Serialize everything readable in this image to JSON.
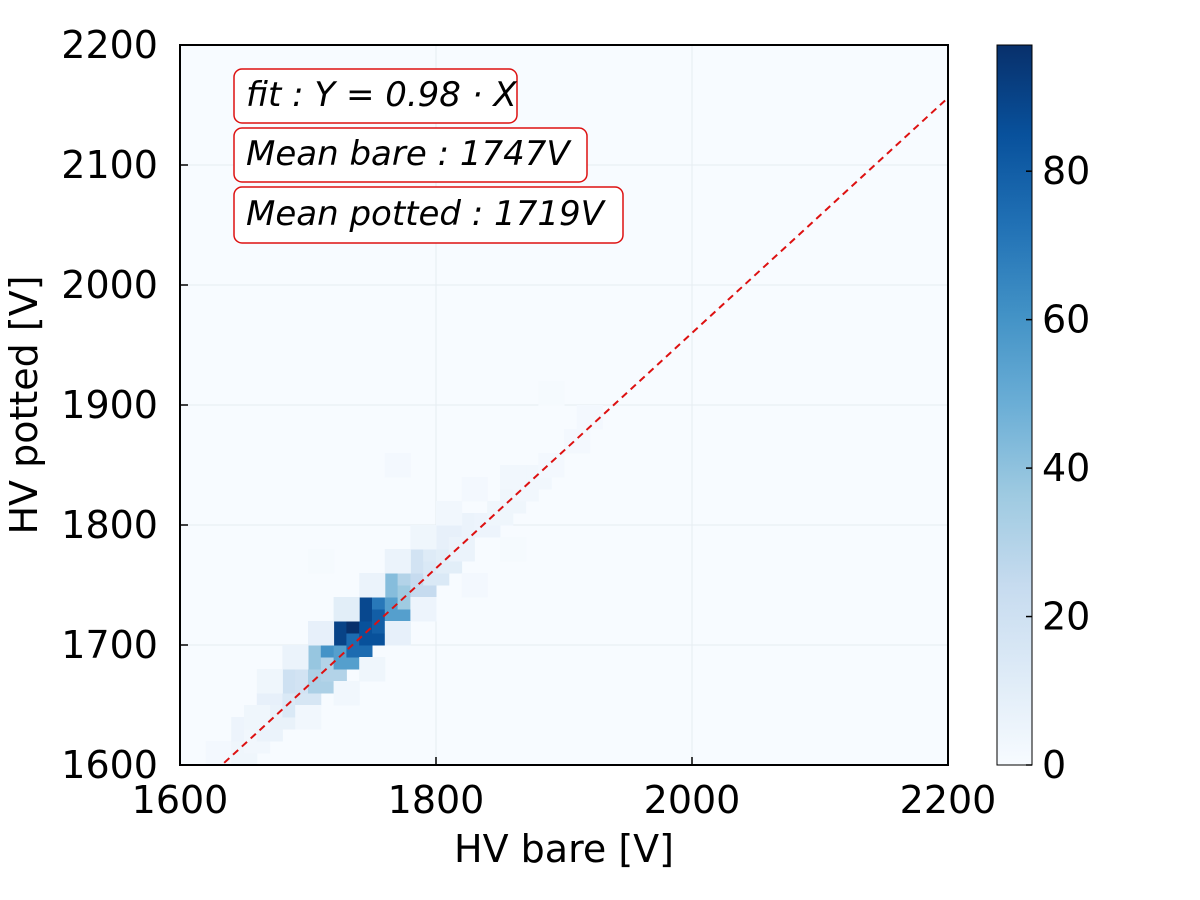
{
  "chart_data": {
    "type": "heatmap",
    "title": "",
    "xlabel": "HV bare [V]",
    "ylabel": "HV potted [V]",
    "xlim": [
      1600,
      2200
    ],
    "ylim": [
      1600,
      2200
    ],
    "xticks": [
      "1600",
      "1800",
      "2000",
      "2200"
    ],
    "yticks": [
      "1600",
      "1700",
      "1800",
      "1900",
      "2000",
      "2100",
      "2200"
    ],
    "bin_width": 20,
    "colorbar": {
      "range": [
        0,
        97
      ],
      "ticks": [
        "0",
        "20",
        "40",
        "60",
        "80"
      ],
      "tick_values": [
        0,
        20,
        40,
        60,
        80
      ],
      "colormap": [
        "#f7fbff",
        "#deebf7",
        "#c6dbef",
        "#9ecae1",
        "#6baed6",
        "#4292c6",
        "#2171b5",
        "#08519c",
        "#08306b"
      ]
    },
    "annotations": [
      "fit : Y = 0.98 · X",
      "Mean bare : 1747V",
      "Mean potted : 1719V"
    ],
    "fit_line": {
      "slope": 0.98,
      "color": "#dd1111"
    },
    "bins": [
      [
        1620,
        1600,
        2
      ],
      [
        1640,
        1600,
        4
      ],
      [
        1640,
        1620,
        5
      ],
      [
        1650,
        1610,
        3
      ],
      [
        1660,
        1620,
        6
      ],
      [
        1660,
        1640,
        8
      ],
      [
        1670,
        1630,
        7
      ],
      [
        1680,
        1640,
        14
      ],
      [
        1680,
        1660,
        20
      ],
      [
        1690,
        1650,
        16
      ],
      [
        1690,
        1660,
        18
      ],
      [
        1700,
        1660,
        32
      ],
      [
        1700,
        1680,
        38
      ],
      [
        1710,
        1670,
        30
      ],
      [
        1710,
        1690,
        60
      ],
      [
        1720,
        1680,
        55
      ],
      [
        1720,
        1700,
        90
      ],
      [
        1730,
        1690,
        75
      ],
      [
        1730,
        1710,
        97
      ],
      [
        1740,
        1700,
        85
      ],
      [
        1740,
        1720,
        88
      ],
      [
        1750,
        1710,
        80
      ],
      [
        1750,
        1730,
        70
      ],
      [
        1760,
        1720,
        55
      ],
      [
        1760,
        1740,
        42
      ],
      [
        1770,
        1730,
        36
      ],
      [
        1770,
        1750,
        30
      ],
      [
        1780,
        1740,
        24
      ],
      [
        1780,
        1760,
        18
      ],
      [
        1790,
        1750,
        14
      ],
      [
        1790,
        1770,
        12
      ],
      [
        1800,
        1760,
        10
      ],
      [
        1800,
        1780,
        8
      ],
      [
        1810,
        1770,
        6
      ],
      [
        1820,
        1790,
        6
      ],
      [
        1830,
        1790,
        5
      ],
      [
        1840,
        1800,
        4
      ],
      [
        1850,
        1810,
        4
      ],
      [
        1860,
        1820,
        3
      ],
      [
        1870,
        1830,
        3
      ],
      [
        1880,
        1840,
        2
      ],
      [
        1900,
        1860,
        2
      ],
      [
        1910,
        1880,
        2
      ],
      [
        1760,
        1700,
        8
      ],
      [
        1740,
        1740,
        6
      ],
      [
        1720,
        1720,
        10
      ],
      [
        1700,
        1700,
        8
      ],
      [
        1780,
        1720,
        5
      ],
      [
        1680,
        1680,
        6
      ],
      [
        1660,
        1660,
        4
      ],
      [
        1740,
        1670,
        4
      ],
      [
        1800,
        1800,
        3
      ],
      [
        1780,
        1780,
        4
      ],
      [
        1820,
        1820,
        2
      ],
      [
        1760,
        1760,
        6
      ],
      [
        1650,
        1630,
        4
      ],
      [
        1690,
        1630,
        3
      ],
      [
        1720,
        1650,
        3
      ],
      [
        1850,
        1830,
        3
      ],
      [
        1820,
        1740,
        2
      ],
      [
        1760,
        1840,
        2
      ],
      [
        1880,
        1900,
        1
      ],
      [
        1850,
        1770,
        1
      ],
      [
        1700,
        1760,
        1
      ]
    ]
  }
}
